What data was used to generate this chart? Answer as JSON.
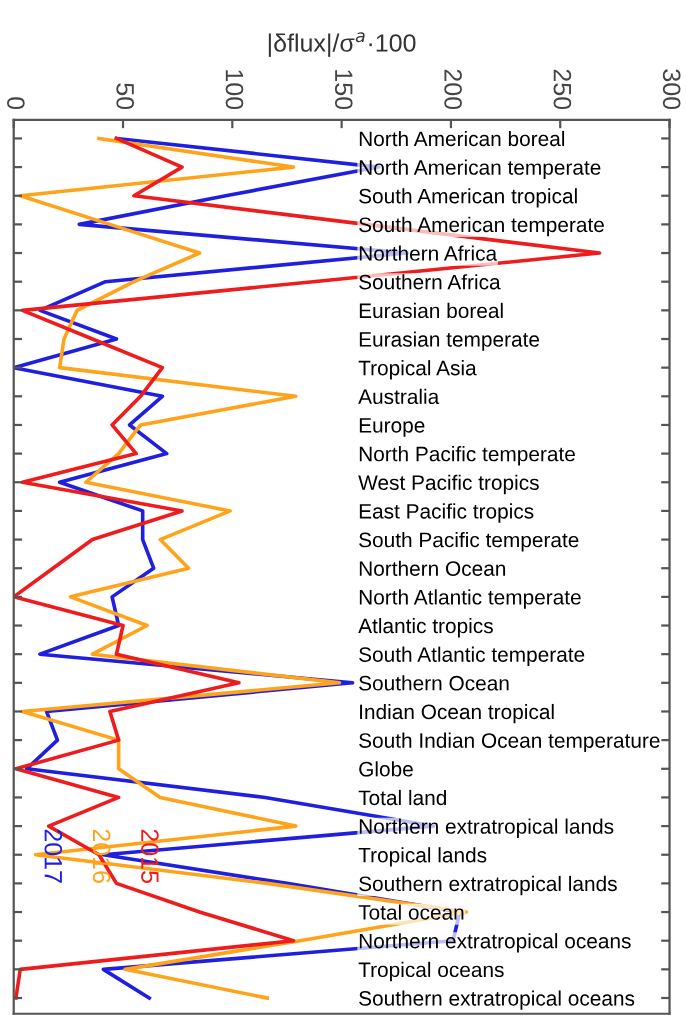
{
  "chart_data": {
    "type": "line",
    "orientation": "horizontal",
    "xlabel": "|δflux|/σ$^{a}$·100",
    "categories": [
      "North American boreal",
      "North American temperate",
      "South American tropical",
      "South American temperate",
      "Northern Africa",
      "Southern Africa",
      "Eurasian boreal",
      "Eurasian temperate",
      "Tropical Asia",
      "Australia",
      "Europe",
      "North Pacific temperate",
      "West Pacific tropics",
      "East Pacific tropics",
      "South Pacific temperate",
      "Northern Ocean",
      "North Atlantic temperate",
      "Atlantic tropics",
      "South Atlantic temperate",
      "Southern Ocean",
      "Indian Ocean tropical",
      "South Indian Ocean temperature",
      "Globe",
      "Total land",
      "Northern extratropical lands",
      "Tropical lands",
      "Southern extratropical lands",
      "Total ocean",
      "Northern extratropical oceans",
      "Tropical oceans",
      "Southern extratropical oceans"
    ],
    "series": [
      {
        "name": "2017",
        "color": "#1f1fe0",
        "values": [
          47,
          167,
          97,
          30,
          180,
          42,
          12,
          47,
          0,
          68,
          53,
          70,
          21,
          59,
          59,
          64,
          45,
          48,
          12,
          155,
          15,
          20,
          6,
          115,
          192,
          41,
          125,
          204,
          201,
          41,
          62
        ]
      },
      {
        "name": "2016",
        "color": "#ffa31a",
        "values": [
          39,
          128,
          3,
          44,
          85,
          55,
          29,
          23,
          21,
          129,
          58,
          48,
          33,
          99,
          67,
          80,
          26,
          61,
          36,
          149,
          4,
          48,
          48,
          67,
          129,
          10,
          116,
          207,
          131,
          51,
          116
        ]
      },
      {
        "name": "2015",
        "color": "#ee1c1c",
        "values": [
          47,
          77,
          55,
          161,
          268,
          137,
          4,
          36,
          68,
          58,
          45,
          56,
          4,
          77,
          36,
          18,
          0,
          50,
          47,
          103,
          44,
          48,
          1,
          48,
          16,
          39,
          47,
          85,
          128,
          3,
          1
        ]
      }
    ],
    "xlim": [
      0,
      300
    ],
    "xticks": [
      0,
      50,
      100,
      150,
      200,
      250,
      300
    ],
    "legend": "bottom left",
    "line_style": "solid",
    "marker": "none"
  }
}
